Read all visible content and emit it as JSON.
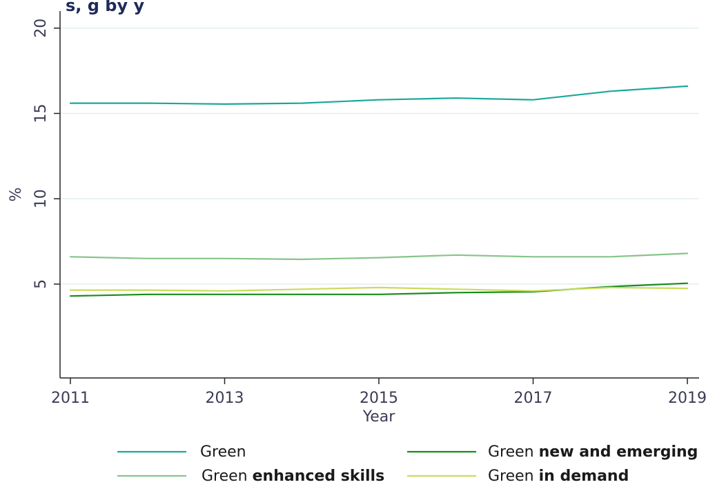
{
  "title_fragment": "s, g by y",
  "chart_data": {
    "type": "line",
    "xlabel": "Year",
    "ylabel": "%",
    "x": [
      2011,
      2012,
      2013,
      2014,
      2015,
      2016,
      2017,
      2018,
      2019
    ],
    "xticks": [
      "2011",
      "2013",
      "2015",
      "2017",
      "2019"
    ],
    "yticks": [
      "5",
      "10",
      "15",
      "20"
    ],
    "ylim": [
      -0.5,
      21
    ],
    "grid": "horizontal",
    "legend_position": "bottom",
    "series": [
      {
        "name": "Green",
        "name_plain": "Green",
        "name_bold": "",
        "color": "#1aa89a",
        "values": [
          15.6,
          15.6,
          15.55,
          15.6,
          15.8,
          15.9,
          15.8,
          16.3,
          16.6
        ]
      },
      {
        "name": "Green enhanced skills",
        "name_plain": "Green ",
        "name_bold": "enhanced skills",
        "color": "#86c48a",
        "values": [
          6.6,
          6.5,
          6.5,
          6.45,
          6.55,
          6.7,
          6.6,
          6.6,
          6.8
        ]
      },
      {
        "name": "Green new and emerging",
        "name_plain": "Green ",
        "name_bold": "new and emerging",
        "color": "#168c1a",
        "values": [
          4.3,
          4.4,
          4.4,
          4.4,
          4.4,
          4.5,
          4.55,
          4.85,
          5.05
        ]
      },
      {
        "name": "Green in demand",
        "name_plain": "Green ",
        "name_bold": "in demand",
        "color": "#c9dc5a",
        "values": [
          4.65,
          4.65,
          4.6,
          4.7,
          4.8,
          4.7,
          4.6,
          4.8,
          4.75
        ]
      }
    ]
  }
}
